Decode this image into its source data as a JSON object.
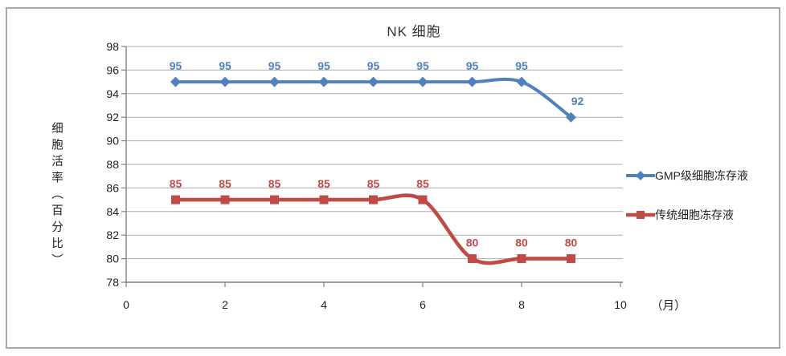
{
  "chart_data": {
    "type": "line",
    "title": "NK 细胞",
    "xlabel": "（月）",
    "ylabel": "细胞活率（百分比）",
    "x": [
      1,
      2,
      3,
      4,
      5,
      6,
      7,
      8,
      9
    ],
    "series": [
      {
        "name": "GMP级细胞冻存液",
        "values": [
          95,
          95,
          95,
          95,
          95,
          95,
          95,
          95,
          92
        ],
        "color": "#4F81BD",
        "marker": "diamond"
      },
      {
        "name": "传统细胞冻存液",
        "values": [
          85,
          85,
          85,
          85,
          85,
          85,
          80,
          80,
          80
        ],
        "color": "#BF4B47",
        "marker": "square"
      }
    ],
    "xlim": [
      0,
      10
    ],
    "ylim": [
      78,
      98
    ],
    "x_ticks": [
      0,
      2,
      4,
      6,
      8,
      10
    ],
    "y_ticks": [
      78,
      80,
      82,
      84,
      86,
      88,
      90,
      92,
      94,
      96,
      98
    ],
    "grid": true,
    "smooth": true,
    "legend_position": "right",
    "colors": {
      "gridline": "#ACACAC",
      "axis": "#7F7F7F",
      "tick_text": "#1F1F1F"
    }
  }
}
